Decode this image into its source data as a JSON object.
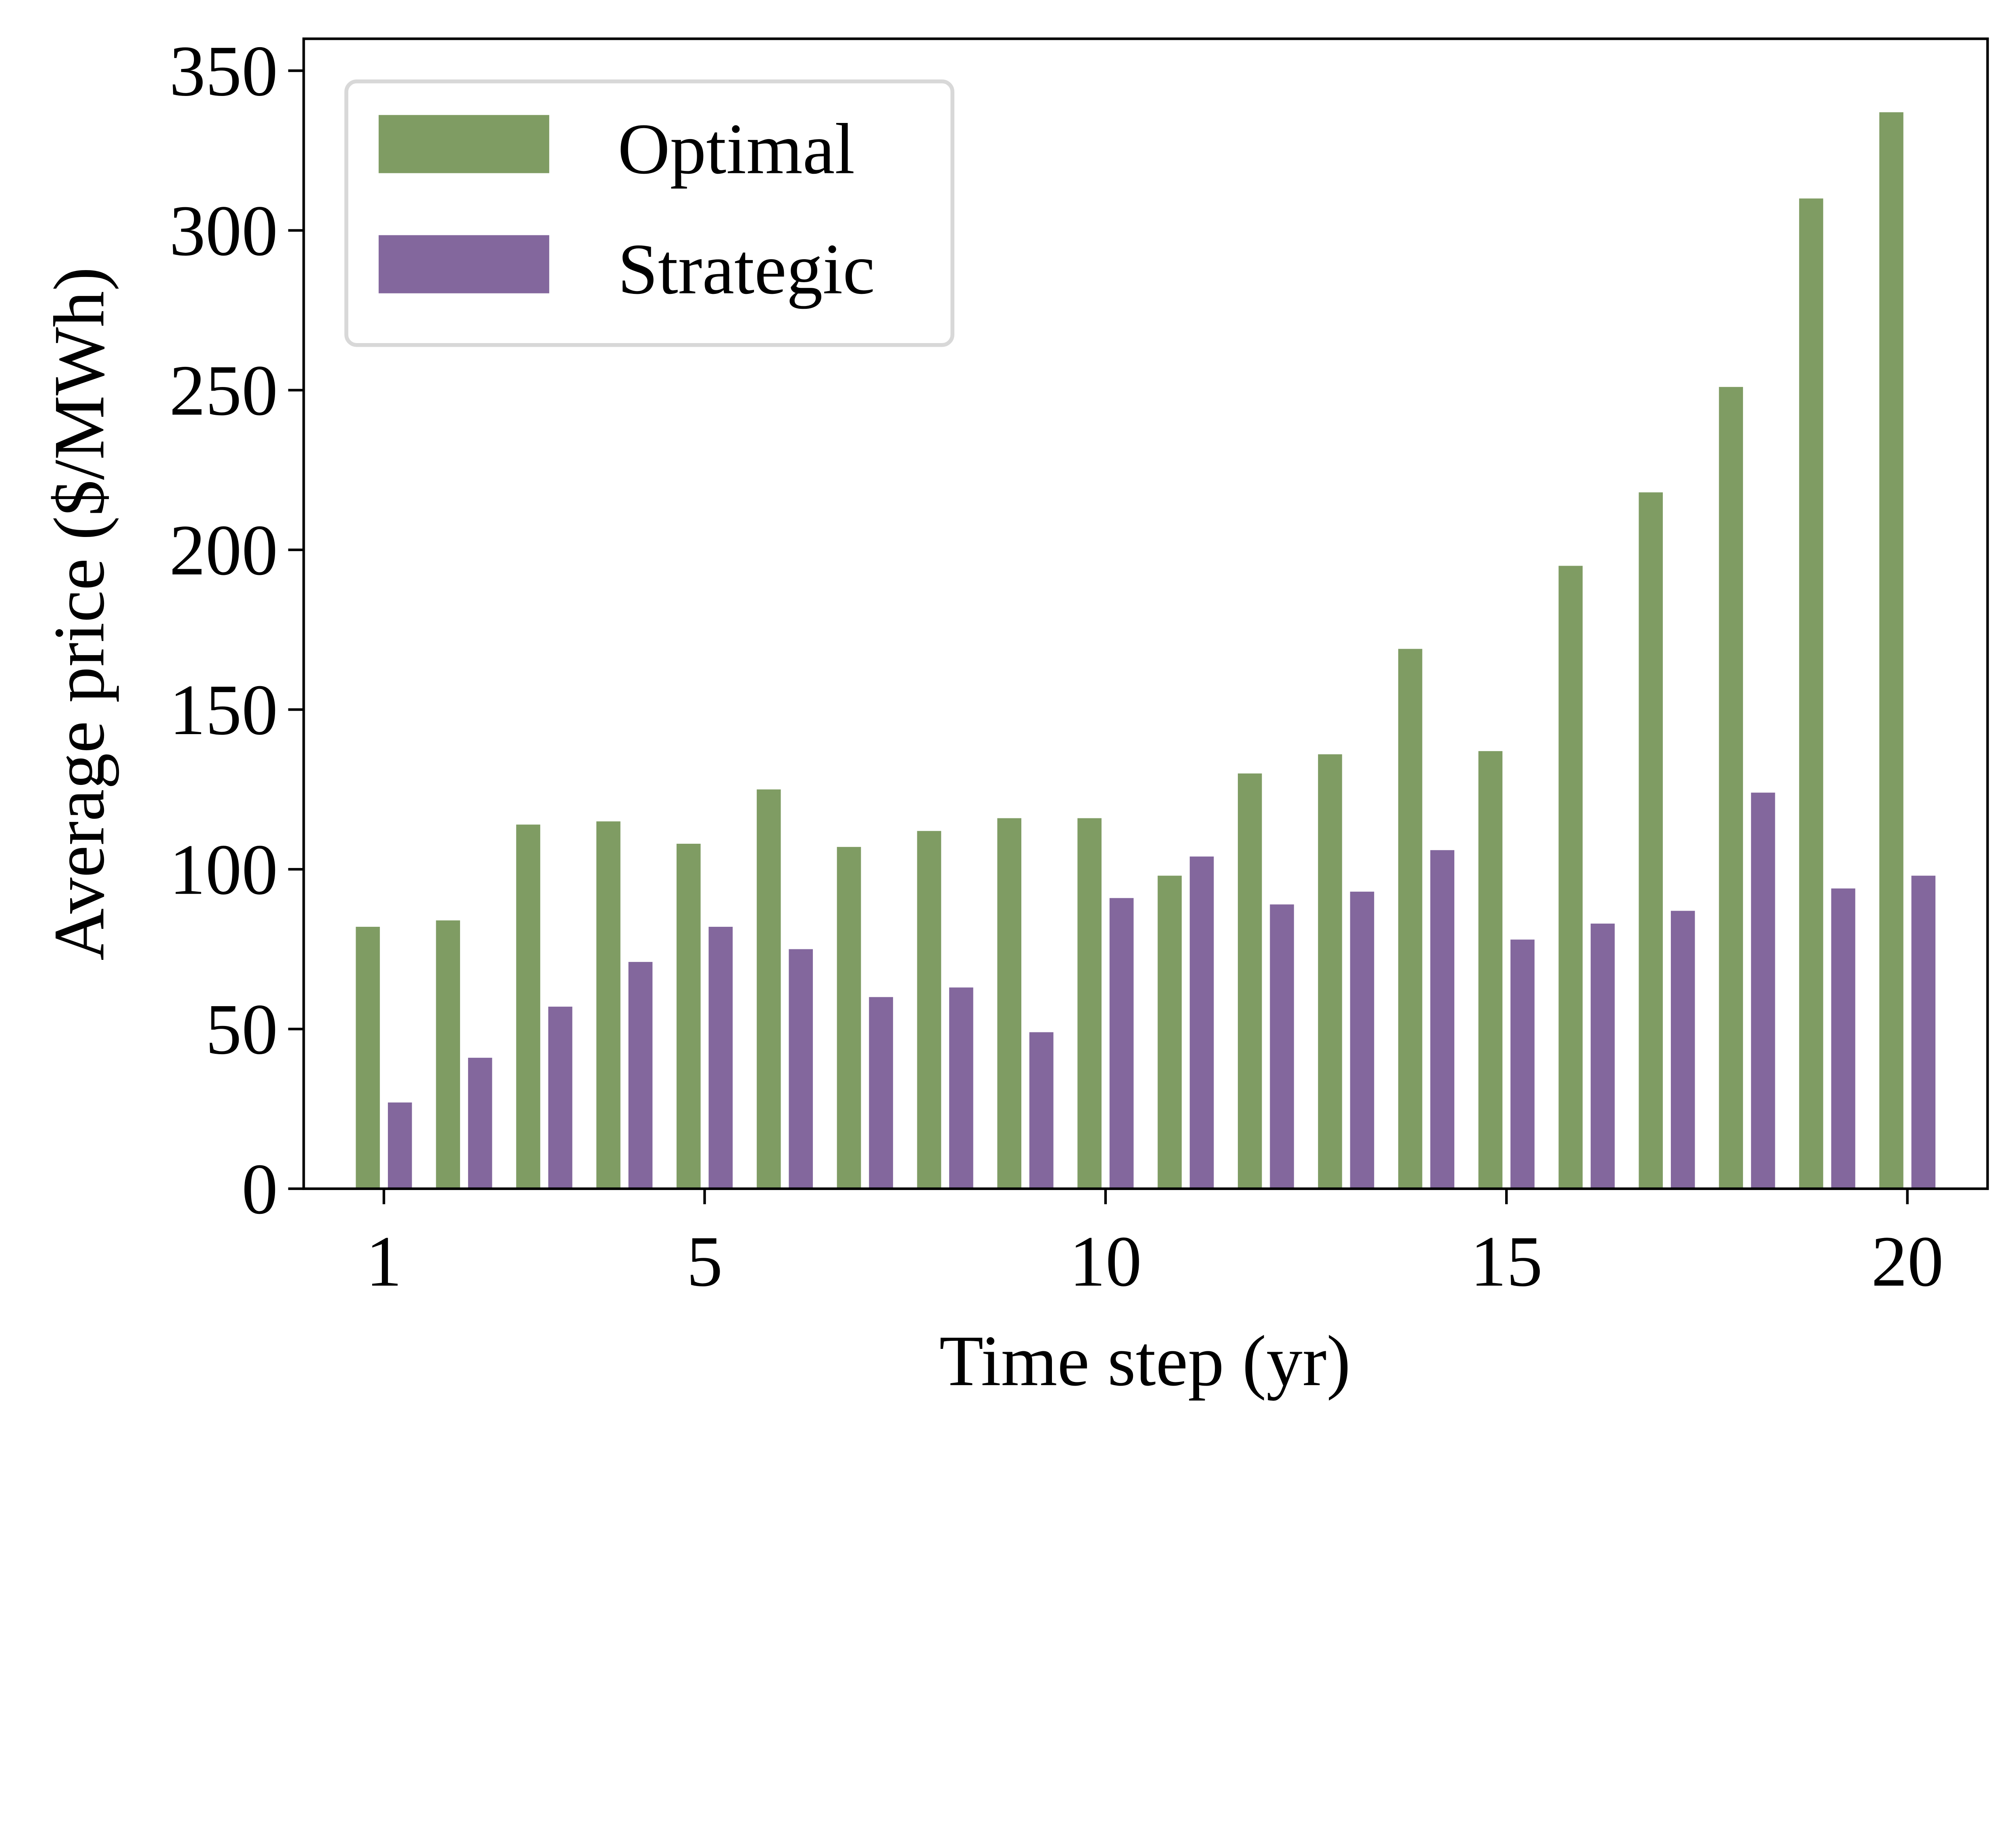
{
  "chart_data": {
    "type": "bar",
    "title": "",
    "xlabel": "Time step (yr)",
    "ylabel": "Average price ($/MWh)",
    "categories": [
      1,
      2,
      3,
      4,
      5,
      6,
      7,
      8,
      9,
      10,
      11,
      12,
      13,
      14,
      15,
      16,
      17,
      18,
      19,
      20
    ],
    "xticks": [
      1,
      5,
      10,
      15,
      20
    ],
    "yticks": [
      0,
      50,
      100,
      150,
      200,
      250,
      300,
      350
    ],
    "xlim": [
      0.0,
      21.0
    ],
    "ylim": [
      0,
      360
    ],
    "grid": false,
    "legend_position": "top-left",
    "series": [
      {
        "name": "Optimal",
        "color": "#7f9c63",
        "values": [
          82,
          84,
          114,
          115,
          108,
          125,
          107,
          112,
          116,
          116,
          98,
          130,
          136,
          169,
          137,
          195,
          218,
          251,
          310,
          337
        ]
      },
      {
        "name": "Strategic",
        "color": "#83679d",
        "values": [
          27,
          41,
          57,
          71,
          82,
          75,
          60,
          63,
          49,
          91,
          104,
          89,
          93,
          106,
          78,
          83,
          87,
          124,
          94,
          98
        ]
      }
    ]
  }
}
